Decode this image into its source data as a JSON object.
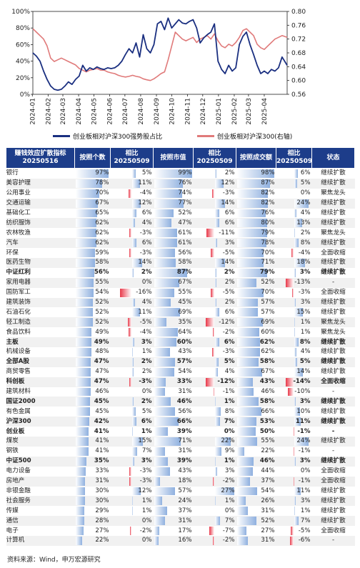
{
  "chart_data": {
    "type": "line",
    "x_ticks": [
      "2024-01",
      "2024-02",
      "2024-03",
      "2024-04",
      "2024-05",
      "2024-06",
      "2024-07",
      "2024-08",
      "2024-09",
      "2024-10",
      "2024-11",
      "2024-12",
      "2025-01",
      "2025-02",
      "2025-03",
      "2025-04"
    ],
    "x_range": [
      "2024-01-02",
      "2025-05-16"
    ],
    "y_left": {
      "min": 0,
      "max": 100,
      "ticks": [
        "0%",
        "20%",
        "40%",
        "60%",
        "80%",
        "100%"
      ]
    },
    "y_right": {
      "min": 0.56,
      "max": 0.8,
      "ticks": [
        "0.56",
        "0.60",
        "0.64",
        "0.68",
        "0.72",
        "0.76",
        "0.80"
      ]
    },
    "series": [
      {
        "name": "创业板相对沪深300强势股占比",
        "axis": "left",
        "color": "#1a2f80",
        "points": [
          [
            "2024-01-02",
            50
          ],
          [
            "2024-01-09",
            46
          ],
          [
            "2024-01-16",
            40
          ],
          [
            "2024-01-23",
            28
          ],
          [
            "2024-01-30",
            18
          ],
          [
            "2024-02-06",
            10
          ],
          [
            "2024-02-13",
            6
          ],
          [
            "2024-02-20",
            5
          ],
          [
            "2024-02-27",
            6
          ],
          [
            "2024-03-05",
            10
          ],
          [
            "2024-03-12",
            15
          ],
          [
            "2024-03-19",
            12
          ],
          [
            "2024-03-26",
            18
          ],
          [
            "2024-04-02",
            22
          ],
          [
            "2024-04-09",
            35
          ],
          [
            "2024-04-16",
            28
          ],
          [
            "2024-04-23",
            32
          ],
          [
            "2024-04-30",
            30
          ],
          [
            "2024-05-07",
            33
          ],
          [
            "2024-05-14",
            31
          ],
          [
            "2024-05-21",
            30
          ],
          [
            "2024-05-28",
            32
          ],
          [
            "2024-06-04",
            31
          ],
          [
            "2024-06-11",
            32
          ],
          [
            "2024-06-18",
            35
          ],
          [
            "2024-06-25",
            40
          ],
          [
            "2024-07-02",
            48
          ],
          [
            "2024-07-09",
            55
          ],
          [
            "2024-07-16",
            50
          ],
          [
            "2024-07-23",
            62
          ],
          [
            "2024-07-30",
            45
          ],
          [
            "2024-08-06",
            72
          ],
          [
            "2024-08-13",
            55
          ],
          [
            "2024-08-20",
            50
          ],
          [
            "2024-08-27",
            60
          ],
          [
            "2024-09-03",
            85
          ],
          [
            "2024-09-10",
            88
          ],
          [
            "2024-09-17",
            78
          ],
          [
            "2024-09-24",
            92
          ],
          [
            "2024-10-01",
            80
          ],
          [
            "2024-10-08",
            85
          ],
          [
            "2024-10-15",
            90
          ],
          [
            "2024-10-22",
            86
          ],
          [
            "2024-10-29",
            85
          ],
          [
            "2024-11-05",
            88
          ],
          [
            "2024-11-12",
            90
          ],
          [
            "2024-11-19",
            80
          ],
          [
            "2024-11-26",
            62
          ],
          [
            "2024-12-03",
            68
          ],
          [
            "2024-12-10",
            72
          ],
          [
            "2024-12-17",
            75
          ],
          [
            "2024-12-24",
            85
          ],
          [
            "2024-12-31",
            40
          ],
          [
            "2025-01-07",
            30
          ],
          [
            "2025-01-14",
            25
          ],
          [
            "2025-01-21",
            35
          ],
          [
            "2025-01-28",
            28
          ],
          [
            "2025-02-04",
            32
          ],
          [
            "2025-02-11",
            60
          ],
          [
            "2025-02-18",
            70
          ],
          [
            "2025-02-25",
            75
          ],
          [
            "2025-03-04",
            60
          ],
          [
            "2025-03-11",
            48
          ],
          [
            "2025-03-18",
            35
          ],
          [
            "2025-03-25",
            25
          ],
          [
            "2025-04-01",
            28
          ],
          [
            "2025-04-08",
            25
          ],
          [
            "2025-04-15",
            30
          ],
          [
            "2025-04-22",
            28
          ],
          [
            "2025-04-29",
            32
          ],
          [
            "2025-05-06",
            45
          ],
          [
            "2025-05-16",
            35
          ]
        ]
      },
      {
        "name": "创业板相对沪深300(右轴)",
        "axis": "right",
        "color": "#e07a7a",
        "points": [
          [
            "2024-01-02",
            0.75
          ],
          [
            "2024-01-09",
            0.74
          ],
          [
            "2024-01-16",
            0.73
          ],
          [
            "2024-01-23",
            0.72
          ],
          [
            "2024-01-30",
            0.7
          ],
          [
            "2024-02-06",
            0.665
          ],
          [
            "2024-02-13",
            0.655
          ],
          [
            "2024-02-20",
            0.66
          ],
          [
            "2024-02-27",
            0.665
          ],
          [
            "2024-03-05",
            0.66
          ],
          [
            "2024-03-12",
            0.655
          ],
          [
            "2024-03-19",
            0.65
          ],
          [
            "2024-03-26",
            0.645
          ],
          [
            "2024-04-02",
            0.635
          ],
          [
            "2024-04-09",
            0.63
          ],
          [
            "2024-04-16",
            0.625
          ],
          [
            "2024-04-23",
            0.63
          ],
          [
            "2024-04-30",
            0.632
          ],
          [
            "2024-05-07",
            0.635
          ],
          [
            "2024-05-14",
            0.63
          ],
          [
            "2024-05-21",
            0.63
          ],
          [
            "2024-05-28",
            0.625
          ],
          [
            "2024-06-04",
            0.622
          ],
          [
            "2024-06-11",
            0.62
          ],
          [
            "2024-06-18",
            0.615
          ],
          [
            "2024-06-25",
            0.612
          ],
          [
            "2024-07-02",
            0.61
          ],
          [
            "2024-07-09",
            0.612
          ],
          [
            "2024-07-16",
            0.615
          ],
          [
            "2024-07-23",
            0.612
          ],
          [
            "2024-07-30",
            0.61
          ],
          [
            "2024-08-06",
            0.605
          ],
          [
            "2024-08-13",
            0.602
          ],
          [
            "2024-08-20",
            0.6
          ],
          [
            "2024-08-27",
            0.605
          ],
          [
            "2024-09-03",
            0.612
          ],
          [
            "2024-09-10",
            0.62
          ],
          [
            "2024-09-17",
            0.625
          ],
          [
            "2024-09-24",
            0.66
          ],
          [
            "2024-10-01",
            0.7
          ],
          [
            "2024-10-08",
            0.74
          ],
          [
            "2024-10-15",
            0.73
          ],
          [
            "2024-10-22",
            0.72
          ],
          [
            "2024-10-29",
            0.715
          ],
          [
            "2024-11-05",
            0.72
          ],
          [
            "2024-11-12",
            0.725
          ],
          [
            "2024-11-19",
            0.71
          ],
          [
            "2024-11-26",
            0.72
          ],
          [
            "2024-12-03",
            0.725
          ],
          [
            "2024-12-10",
            0.73
          ],
          [
            "2024-12-17",
            0.72
          ],
          [
            "2024-12-24",
            0.735
          ],
          [
            "2024-12-31",
            0.715
          ],
          [
            "2025-01-07",
            0.7
          ],
          [
            "2025-01-14",
            0.695
          ],
          [
            "2025-01-21",
            0.705
          ],
          [
            "2025-01-28",
            0.7
          ],
          [
            "2025-02-04",
            0.71
          ],
          [
            "2025-02-11",
            0.725
          ],
          [
            "2025-02-18",
            0.745
          ],
          [
            "2025-02-25",
            0.75
          ],
          [
            "2025-03-04",
            0.74
          ],
          [
            "2025-03-11",
            0.73
          ],
          [
            "2025-03-18",
            0.705
          ],
          [
            "2025-03-25",
            0.695
          ],
          [
            "2025-04-01",
            0.69
          ],
          [
            "2025-04-08",
            0.7
          ],
          [
            "2025-04-15",
            0.71
          ],
          [
            "2025-04-22",
            0.72
          ],
          [
            "2025-04-29",
            0.725
          ],
          [
            "2025-05-06",
            0.73
          ],
          [
            "2025-05-16",
            0.725
          ]
        ]
      }
    ],
    "grid": false,
    "legend": "bottom"
  },
  "table": {
    "headers": {
      "indicator": "赚钱效应扩散指标",
      "date": "20250516",
      "by_count": "按照个数",
      "vs": "相比",
      "vs_date": "20250509",
      "by_cap": "按照市值",
      "by_turnover": "按照成交额",
      "status": "状态"
    },
    "rows": [
      {
        "name": "银行",
        "c": 97,
        "cd": 5,
        "m": 99,
        "md": 2,
        "t": 98,
        "td": 6,
        "s": "继续扩散"
      },
      {
        "name": "美容护理",
        "c": 78,
        "cd": 11,
        "m": 76,
        "md": 12,
        "t": 87,
        "td": 5,
        "s": "继续扩散"
      },
      {
        "name": "公用事业",
        "c": 70,
        "cd": -4,
        "m": 74,
        "md": -3,
        "t": 82,
        "td": 0,
        "s": "聚焦龙头"
      },
      {
        "name": "交通运输",
        "c": 67,
        "cd": 12,
        "m": 77,
        "md": 14,
        "t": 82,
        "td": 24,
        "s": "继续扩散"
      },
      {
        "name": "基础化工",
        "c": 65,
        "cd": 6,
        "m": 52,
        "md": 6,
        "t": 76,
        "td": 4,
        "s": "继续扩散"
      },
      {
        "name": "纺织服饰",
        "c": 62,
        "cd": 4,
        "m": 47,
        "md": 6,
        "t": 80,
        "td": 13,
        "s": "继续扩散"
      },
      {
        "name": "农林牧渔",
        "c": 62,
        "cd": -3,
        "m": 61,
        "md": -11,
        "t": 79,
        "td": 2,
        "s": "聚焦龙头"
      },
      {
        "name": "汽车",
        "c": 62,
        "cd": 6,
        "m": 61,
        "md": 3,
        "t": 78,
        "td": 8,
        "s": "继续扩散"
      },
      {
        "name": "环保",
        "c": 59,
        "cd": -3,
        "m": 56,
        "md": -5,
        "t": 70,
        "td": -4,
        "s": "全面收缩"
      },
      {
        "name": "医药生物",
        "c": 58,
        "cd": 14,
        "m": 58,
        "md": 14,
        "t": 71,
        "td": 18,
        "s": "继续扩散"
      },
      {
        "name": "中证红利",
        "c": 56,
        "cd": 2,
        "m": 87,
        "md": 2,
        "t": 79,
        "td": 3,
        "s": "继续扩散",
        "bold": true
      },
      {
        "name": "家用电器",
        "c": 55,
        "cd": 0,
        "m": 67,
        "md": 2,
        "t": 52,
        "td": -13,
        "s": "-"
      },
      {
        "name": "国防军工",
        "c": 54,
        "cd": -16,
        "m": 55,
        "md": -5,
        "t": 70,
        "td": -3,
        "s": "全面收缩"
      },
      {
        "name": "建筑装饰",
        "c": 52,
        "cd": 4,
        "m": 45,
        "md": 2,
        "t": 57,
        "td": 3,
        "s": "继续扩散"
      },
      {
        "name": "石油石化",
        "c": 52,
        "cd": 11,
        "m": 69,
        "md": 6,
        "t": 57,
        "td": 15,
        "s": "继续扩散"
      },
      {
        "name": "轻工制造",
        "c": 52,
        "cd": -5,
        "m": 35,
        "md": -12,
        "t": 69,
        "td": 1,
        "s": "聚焦龙头"
      },
      {
        "name": "食品饮料",
        "c": 49,
        "cd": -4,
        "m": 64,
        "md": -2,
        "t": 60,
        "td": 1,
        "s": "聚焦龙头"
      },
      {
        "name": "主板",
        "c": 49,
        "cd": 3,
        "m": 60,
        "md": 6,
        "t": 62,
        "td": 8,
        "s": "继续扩散",
        "bold": true
      },
      {
        "name": "机械设备",
        "c": 48,
        "cd": 1,
        "m": 43,
        "md": -3,
        "t": 62,
        "td": 4,
        "s": "继续扩散"
      },
      {
        "name": "全部A股",
        "c": 47,
        "cd": 2,
        "m": 57,
        "md": 5,
        "t": 58,
        "td": 5,
        "s": "继续扩散",
        "bold": true
      },
      {
        "name": "商贸零售",
        "c": 47,
        "cd": 2,
        "m": 54,
        "md": 4,
        "t": 67,
        "td": 14,
        "s": "继续扩散"
      },
      {
        "name": "科创板",
        "c": 47,
        "cd": -3,
        "m": 33,
        "md": -12,
        "t": 43,
        "td": -14,
        "s": "全面收缩",
        "bold": true
      },
      {
        "name": "建筑材料",
        "c": 46,
        "cd": 0,
        "m": 31,
        "md": -1,
        "t": 46,
        "td": -10,
        "s": "-"
      },
      {
        "name": "国证2000",
        "c": 45,
        "cd": 2,
        "m": 46,
        "md": 1,
        "t": 58,
        "td": 3,
        "s": "继续扩散",
        "bold": true
      },
      {
        "name": "有色金属",
        "c": 45,
        "cd": 5,
        "m": 56,
        "md": 8,
        "t": 66,
        "td": 10,
        "s": "继续扩散"
      },
      {
        "name": "沪深300",
        "c": 42,
        "cd": 6,
        "m": 66,
        "md": 7,
        "t": 53,
        "td": 11,
        "s": "继续扩散",
        "bold": true
      },
      {
        "name": "创业板",
        "c": 41,
        "cd": 1,
        "m": 39,
        "md": 0,
        "t": 50,
        "td": -1,
        "s": "-",
        "bold": true
      },
      {
        "name": "煤炭",
        "c": 41,
        "cd": 15,
        "m": 71,
        "md": 22,
        "t": 55,
        "td": 24,
        "s": "继续扩散"
      },
      {
        "name": "钢铁",
        "c": 41,
        "cd": 7,
        "m": 31,
        "md": 9,
        "t": 22,
        "td": -1,
        "s": "-"
      },
      {
        "name": "中证500",
        "c": 35,
        "cd": 3,
        "m": 39,
        "md": 1,
        "t": 46,
        "td": 3,
        "s": "继续扩散",
        "bold": true
      },
      {
        "name": "电力设备",
        "c": 33,
        "cd": -3,
        "m": 43,
        "md": 3,
        "t": 44,
        "td": 0,
        "s": "全面收缩"
      },
      {
        "name": "房地产",
        "c": 31,
        "cd": -3,
        "m": 18,
        "md": -2,
        "t": 37,
        "td": -1,
        "s": "全面收缩"
      },
      {
        "name": "非银金融",
        "c": 30,
        "cd": 12,
        "m": 57,
        "md": 27,
        "t": 54,
        "td": 11,
        "s": "继续扩散"
      },
      {
        "name": "社会服务",
        "c": 30,
        "cd": 1,
        "m": 24,
        "md": 1,
        "t": 26,
        "td": 3,
        "s": "继续扩散"
      },
      {
        "name": "传媒",
        "c": 29,
        "cd": 1,
        "m": 37,
        "md": 0,
        "t": 31,
        "td": 1,
        "s": "继续扩散"
      },
      {
        "name": "通信",
        "c": 28,
        "cd": 0,
        "m": 31,
        "md": 7,
        "t": 52,
        "td": 7,
        "s": "继续扩散"
      },
      {
        "name": "电子",
        "c": 27,
        "cd": -2,
        "m": 17,
        "md": -7,
        "t": 27,
        "td": -5,
        "s": "全面收缩"
      },
      {
        "name": "计算机",
        "c": 22,
        "cd": 0,
        "m": 16,
        "md": -2,
        "t": 31,
        "td": -6,
        "s": "-"
      }
    ]
  },
  "source": "资料来源：Wind，申万宏源研究"
}
